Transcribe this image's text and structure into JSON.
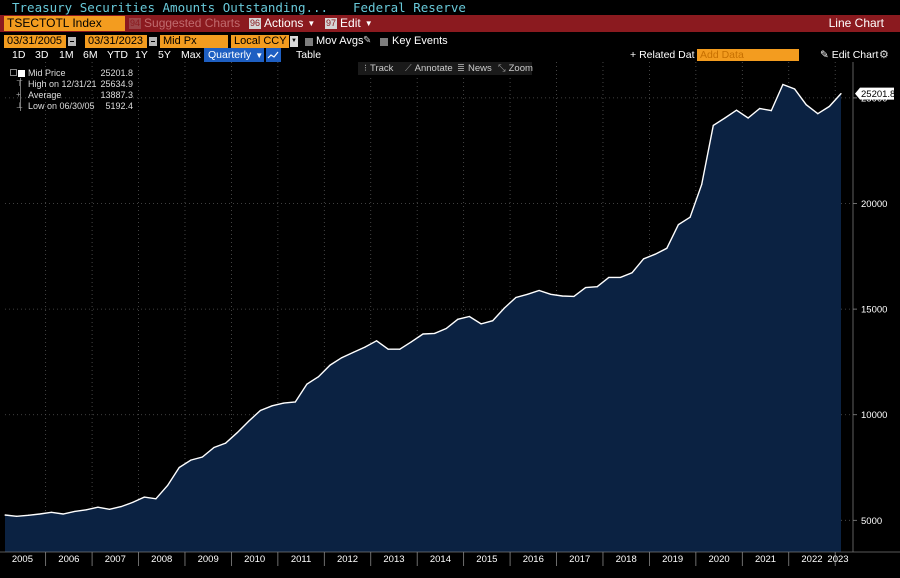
{
  "header": {
    "title": "Treasury Securities Amounts Outstanding...",
    "publisher": "Federal Reserve"
  },
  "command_bar": {
    "ticker": "TSECTOTL Index",
    "suggested": {
      "num": "94",
      "label": "Suggested Charts"
    },
    "actions": {
      "num": "96",
      "label": "Actions"
    },
    "edit": {
      "num": "97",
      "label": "Edit"
    },
    "chart_type": "Line Chart"
  },
  "params": {
    "start_date": "03/31/2005",
    "end_date": "03/31/2023",
    "price_field": "Mid Px",
    "currency": "Local CCY",
    "mov_avgs": "Mov Avgs",
    "key_events": "Key Events"
  },
  "periods": {
    "items": [
      "1D",
      "3D",
      "1M",
      "6M",
      "YTD",
      "1Y",
      "5Y",
      "Max"
    ],
    "selected": "Quarterly",
    "table": "Table",
    "related": "Related Dat",
    "add_data_placeholder": "Add Data",
    "edit_chart": "Edit Chart"
  },
  "chart_tools": [
    "Track",
    "Annotate",
    "News",
    "Zoom"
  ],
  "legend": {
    "series": {
      "label": "Mid Price",
      "value": "25201.8"
    },
    "high": {
      "label": "High on 12/31/21",
      "value": "25634.9"
    },
    "average": {
      "label": "Average",
      "value": "13887.3"
    },
    "low": {
      "label": "Low on 06/30/05",
      "value": "5192.4"
    }
  },
  "colors": {
    "background": "#000000",
    "area_fill": "#0b2242",
    "line": "#ffffff",
    "title": "#68c9d9",
    "amber": "#f39c1f",
    "command_bar": "#8b1a1f",
    "selected": "#1e5fc2"
  },
  "chart_data": {
    "type": "area",
    "series": [
      {
        "name": "Mid Price",
        "x": [
          "2005Q1",
          "2005Q2",
          "2005Q3",
          "2005Q4",
          "2006Q1",
          "2006Q2",
          "2006Q3",
          "2006Q4",
          "2007Q1",
          "2007Q2",
          "2007Q3",
          "2007Q4",
          "2008Q1",
          "2008Q2",
          "2008Q3",
          "2008Q4",
          "2009Q1",
          "2009Q2",
          "2009Q3",
          "2009Q4",
          "2010Q1",
          "2010Q2",
          "2010Q3",
          "2010Q4",
          "2011Q1",
          "2011Q2",
          "2011Q3",
          "2011Q4",
          "2012Q1",
          "2012Q2",
          "2012Q3",
          "2012Q4",
          "2013Q1",
          "2013Q2",
          "2013Q3",
          "2013Q4",
          "2014Q1",
          "2014Q2",
          "2014Q3",
          "2014Q4",
          "2015Q1",
          "2015Q2",
          "2015Q3",
          "2015Q4",
          "2016Q1",
          "2016Q2",
          "2016Q3",
          "2016Q4",
          "2017Q1",
          "2017Q2",
          "2017Q3",
          "2017Q4",
          "2018Q1",
          "2018Q2",
          "2018Q3",
          "2018Q4",
          "2019Q1",
          "2019Q2",
          "2019Q3",
          "2019Q4",
          "2020Q1",
          "2020Q2",
          "2020Q3",
          "2020Q4",
          "2021Q1",
          "2021Q2",
          "2021Q3",
          "2021Q4",
          "2022Q1",
          "2022Q2",
          "2022Q3",
          "2022Q4",
          "2023Q1"
        ],
        "values": [
          5250,
          5192.4,
          5240,
          5300,
          5380,
          5300,
          5420,
          5500,
          5620,
          5520,
          5650,
          5850,
          6100,
          6020,
          6650,
          7500,
          7850,
          8000,
          8450,
          8650,
          9150,
          9700,
          10200,
          10420,
          10550,
          10600,
          11450,
          11800,
          12350,
          12700,
          12950,
          13200,
          13500,
          13100,
          13100,
          13450,
          13820,
          13850,
          14080,
          14520,
          14650,
          14300,
          14450,
          15050,
          15550,
          15700,
          15880,
          15700,
          15620,
          15600,
          16020,
          16060,
          16500,
          16500,
          16720,
          17380,
          17600,
          17880,
          19000,
          19350,
          20900,
          23700,
          24050,
          24420,
          24050,
          24500,
          24400,
          25634.9,
          25420,
          24680,
          24250,
          24600,
          25201.8
        ]
      }
    ],
    "ylim": [
      3500,
      26700
    ],
    "yticks": [
      5000,
      10000,
      15000,
      20000,
      25000
    ],
    "xticks": [
      "2005",
      "2006",
      "2007",
      "2008",
      "2009",
      "2010",
      "2011",
      "2012",
      "2013",
      "2014",
      "2015",
      "2016",
      "2017",
      "2018",
      "2019",
      "2020",
      "2021",
      "2022",
      "2023"
    ],
    "last_value": "25201.8",
    "grid": true,
    "legend_position": "top-left"
  }
}
